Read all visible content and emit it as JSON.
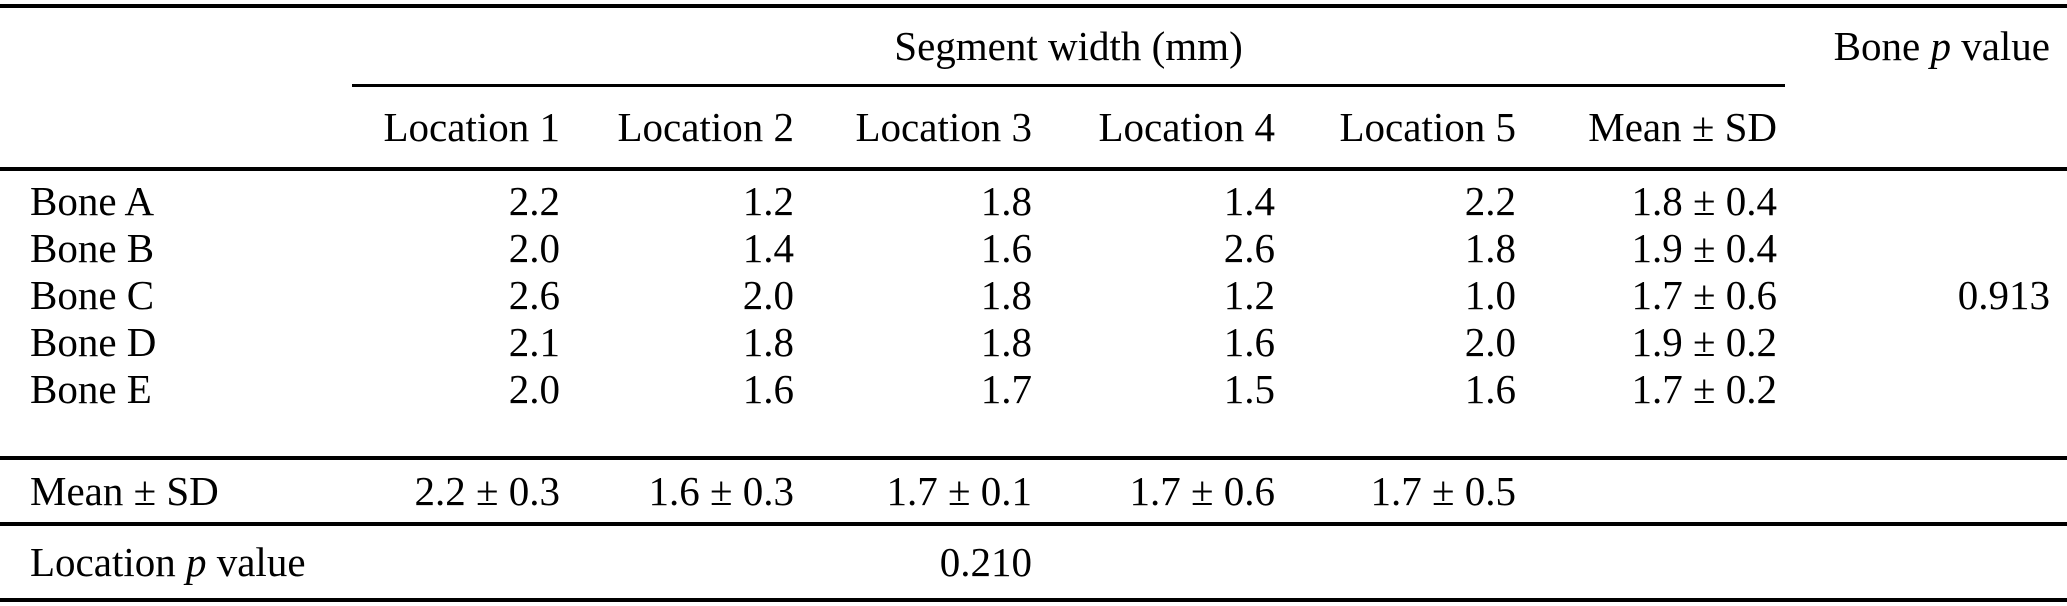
{
  "table": {
    "group_header": "Segment width (mm)",
    "bone_p_header": {
      "pre": "Bone",
      "italic": "p",
      "post": "value"
    },
    "column_headers": [
      "Location 1",
      "Location 2",
      "Location 3",
      "Location 4",
      "Location 5",
      "Mean ± SD"
    ],
    "rows": [
      {
        "label": "Bone A",
        "values": [
          "2.2",
          "1.2",
          "1.8",
          "1.4",
          "2.2",
          "1.8 ± 0.4"
        ],
        "bone_p": ""
      },
      {
        "label": "Bone B",
        "values": [
          "2.0",
          "1.4",
          "1.6",
          "2.6",
          "1.8",
          "1.9 ± 0.4"
        ],
        "bone_p": ""
      },
      {
        "label": "Bone C",
        "values": [
          "2.6",
          "2.0",
          "1.8",
          "1.2",
          "1.0",
          "1.7 ± 0.6"
        ],
        "bone_p": "0.913"
      },
      {
        "label": "Bone D",
        "values": [
          "2.1",
          "1.8",
          "1.8",
          "1.6",
          "2.0",
          "1.9 ± 0.2"
        ],
        "bone_p": ""
      },
      {
        "label": "Bone E",
        "values": [
          "2.0",
          "1.6",
          "1.7",
          "1.5",
          "1.6",
          "1.7 ± 0.2"
        ],
        "bone_p": ""
      }
    ],
    "mean_row": {
      "label": "Mean ± SD",
      "values": [
        "2.2 ± 0.3",
        "1.6 ± 0.3",
        "1.7 ± 0.1",
        "1.7 ± 0.6",
        "1.7 ± 0.5"
      ]
    },
    "location_p_row": {
      "label": {
        "pre": "Location",
        "italic": "p",
        "post": "value"
      },
      "value": "0.210"
    }
  },
  "chart_data": {
    "type": "table",
    "title": "Segment width (mm)",
    "categories": [
      "Location 1",
      "Location 2",
      "Location 3",
      "Location 4",
      "Location 5"
    ],
    "series": [
      {
        "name": "Bone A",
        "values": [
          2.2,
          1.2,
          1.8,
          1.4,
          2.2
        ],
        "mean_sd": "1.8 ± 0.4"
      },
      {
        "name": "Bone B",
        "values": [
          2.0,
          1.4,
          1.6,
          2.6,
          1.8
        ],
        "mean_sd": "1.9 ± 0.4"
      },
      {
        "name": "Bone C",
        "values": [
          2.6,
          2.0,
          1.8,
          1.2,
          1.0
        ],
        "mean_sd": "1.7 ± 0.6"
      },
      {
        "name": "Bone D",
        "values": [
          2.1,
          1.8,
          1.8,
          1.6,
          2.0
        ],
        "mean_sd": "1.9 ± 0.2"
      },
      {
        "name": "Bone E",
        "values": [
          2.0,
          1.6,
          1.7,
          1.5,
          1.6
        ],
        "mean_sd": "1.7 ± 0.2"
      }
    ],
    "column_means": [
      "2.2 ± 0.3",
      "1.6 ± 0.3",
      "1.7 ± 0.1",
      "1.7 ± 0.6",
      "1.7 ± 0.5"
    ],
    "bone_p_value": 0.913,
    "location_p_value": 0.21
  }
}
